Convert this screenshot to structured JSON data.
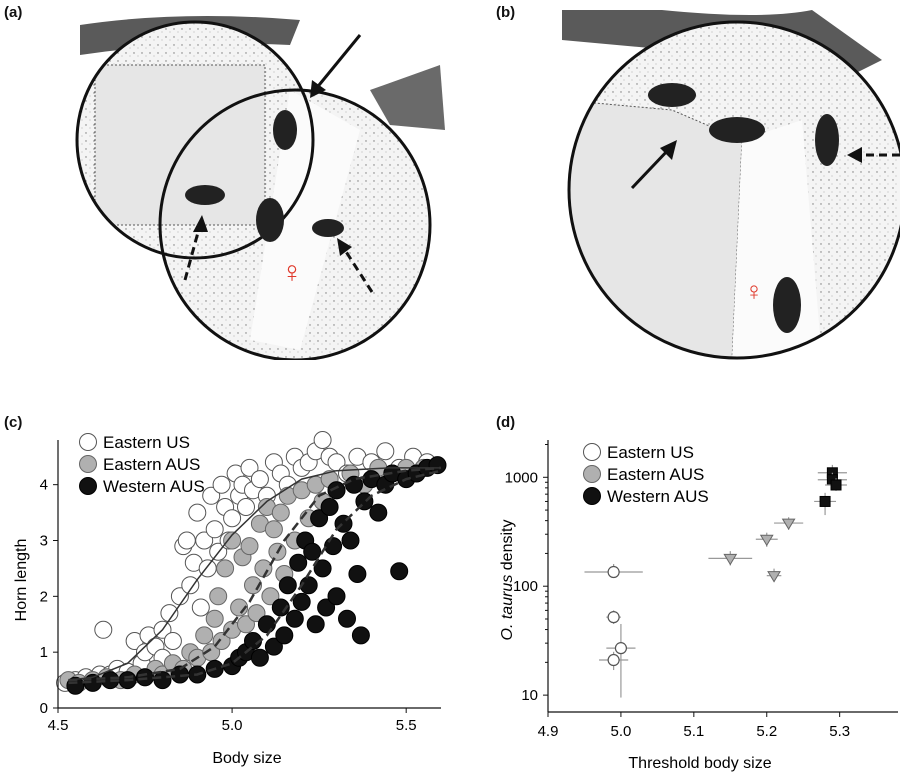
{
  "panels": {
    "a": {
      "label": "(a)"
    },
    "b": {
      "label": "(b)"
    },
    "c": {
      "label": "(c)"
    },
    "d": {
      "label": "(d)"
    }
  },
  "female_symbol": "♀",
  "colors": {
    "eastern_us": "#ffffff",
    "eastern_aus": "#b0b0b0",
    "western_aus": "#111111",
    "stone": "#d9d9d9",
    "beetle": "#222222",
    "female_symbol": "#e0392b"
  },
  "chart_data": [
    {
      "type": "scatter",
      "title": "",
      "xlabel": "Body size",
      "ylabel": "Horn length",
      "xlim": [
        4.5,
        5.6
      ],
      "ylim": [
        0,
        4.8
      ],
      "x_ticks": [
        "4.5",
        "5.0",
        "5.5"
      ],
      "y_ticks": [
        "0",
        "1",
        "2",
        "3",
        "4"
      ],
      "legend": [
        "Eastern US",
        "Eastern AUS",
        "Western AUS"
      ],
      "legend_position": "top-left",
      "series": [
        {
          "name": "Eastern US",
          "points": [
            [
              4.52,
              0.45
            ],
            [
              4.55,
              0.5
            ],
            [
              4.58,
              0.55
            ],
            [
              4.6,
              0.5
            ],
            [
              4.62,
              0.6
            ],
            [
              4.63,
              1.4
            ],
            [
              4.65,
              0.6
            ],
            [
              4.67,
              0.7
            ],
            [
              4.7,
              0.65
            ],
            [
              4.72,
              1.2
            ],
            [
              4.74,
              0.8
            ],
            [
              4.75,
              1.0
            ],
            [
              4.76,
              1.3
            ],
            [
              4.78,
              1.1
            ],
            [
              4.8,
              0.9
            ],
            [
              4.8,
              1.4
            ],
            [
              4.82,
              1.7
            ],
            [
              4.83,
              1.2
            ],
            [
              4.85,
              2.0
            ],
            [
              4.86,
              2.9
            ],
            [
              4.87,
              3.0
            ],
            [
              4.88,
              2.2
            ],
            [
              4.89,
              2.6
            ],
            [
              4.9,
              3.5
            ],
            [
              4.91,
              1.8
            ],
            [
              4.92,
              3.0
            ],
            [
              4.93,
              2.5
            ],
            [
              4.94,
              3.8
            ],
            [
              4.95,
              3.2
            ],
            [
              4.96,
              2.8
            ],
            [
              4.97,
              4.0
            ],
            [
              4.98,
              3.6
            ],
            [
              4.99,
              3.0
            ],
            [
              5.0,
              3.4
            ],
            [
              5.01,
              4.2
            ],
            [
              5.02,
              3.8
            ],
            [
              5.03,
              4.0
            ],
            [
              5.04,
              3.6
            ],
            [
              5.05,
              4.3
            ],
            [
              5.06,
              3.9
            ],
            [
              5.08,
              4.1
            ],
            [
              5.1,
              3.8
            ],
            [
              5.12,
              4.4
            ],
            [
              5.14,
              4.2
            ],
            [
              5.16,
              4.0
            ],
            [
              5.18,
              4.5
            ],
            [
              5.2,
              4.3
            ],
            [
              5.22,
              4.4
            ],
            [
              5.24,
              4.6
            ],
            [
              5.26,
              4.8
            ],
            [
              5.28,
              4.5
            ],
            [
              5.3,
              4.4
            ],
            [
              5.33,
              4.2
            ],
            [
              5.36,
              4.5
            ],
            [
              5.4,
              4.4
            ],
            [
              5.44,
              4.6
            ],
            [
              5.48,
              4.3
            ],
            [
              5.52,
              4.5
            ],
            [
              5.56,
              4.4
            ]
          ]
        },
        {
          "name": "Eastern AUS",
          "points": [
            [
              4.53,
              0.5
            ],
            [
              4.56,
              0.45
            ],
            [
              4.6,
              0.5
            ],
            [
              4.64,
              0.55
            ],
            [
              4.68,
              0.5
            ],
            [
              4.72,
              0.6
            ],
            [
              4.75,
              0.55
            ],
            [
              4.78,
              0.7
            ],
            [
              4.8,
              0.6
            ],
            [
              4.83,
              0.8
            ],
            [
              4.86,
              0.7
            ],
            [
              4.88,
              1.0
            ],
            [
              4.9,
              0.9
            ],
            [
              4.92,
              1.3
            ],
            [
              4.94,
              1.0
            ],
            [
              4.95,
              1.6
            ],
            [
              4.96,
              2.0
            ],
            [
              4.97,
              1.2
            ],
            [
              4.98,
              2.5
            ],
            [
              5.0,
              1.4
            ],
            [
              5.0,
              3.0
            ],
            [
              5.02,
              1.8
            ],
            [
              5.03,
              2.7
            ],
            [
              5.04,
              1.5
            ],
            [
              5.05,
              2.9
            ],
            [
              5.06,
              2.2
            ],
            [
              5.07,
              1.7
            ],
            [
              5.08,
              3.3
            ],
            [
              5.09,
              2.5
            ],
            [
              5.1,
              3.6
            ],
            [
              5.11,
              2.0
            ],
            [
              5.12,
              3.2
            ],
            [
              5.13,
              2.8
            ],
            [
              5.14,
              3.5
            ],
            [
              5.15,
              2.4
            ],
            [
              5.16,
              3.8
            ],
            [
              5.18,
              3.0
            ],
            [
              5.2,
              3.9
            ],
            [
              5.22,
              3.4
            ],
            [
              5.24,
              4.0
            ],
            [
              5.26,
              3.7
            ],
            [
              5.28,
              4.1
            ],
            [
              5.3,
              3.9
            ],
            [
              5.34,
              4.2
            ],
            [
              5.38,
              4.0
            ],
            [
              5.42,
              4.3
            ],
            [
              5.46,
              4.2
            ],
            [
              5.5,
              4.3
            ],
            [
              5.55,
              4.3
            ]
          ]
        },
        {
          "name": "Western AUS",
          "points": [
            [
              4.55,
              0.4
            ],
            [
              4.6,
              0.45
            ],
            [
              4.65,
              0.5
            ],
            [
              4.7,
              0.5
            ],
            [
              4.75,
              0.55
            ],
            [
              4.8,
              0.5
            ],
            [
              4.85,
              0.6
            ],
            [
              4.9,
              0.6
            ],
            [
              4.95,
              0.7
            ],
            [
              5.0,
              0.75
            ],
            [
              5.02,
              0.9
            ],
            [
              5.04,
              1.0
            ],
            [
              5.06,
              1.2
            ],
            [
              5.08,
              0.9
            ],
            [
              5.1,
              1.5
            ],
            [
              5.12,
              1.1
            ],
            [
              5.14,
              1.8
            ],
            [
              5.15,
              1.3
            ],
            [
              5.16,
              2.2
            ],
            [
              5.18,
              1.6
            ],
            [
              5.19,
              2.6
            ],
            [
              5.2,
              1.9
            ],
            [
              5.21,
              3.0
            ],
            [
              5.22,
              2.2
            ],
            [
              5.23,
              2.8
            ],
            [
              5.24,
              1.5
            ],
            [
              5.25,
              3.4
            ],
            [
              5.26,
              2.5
            ],
            [
              5.27,
              1.8
            ],
            [
              5.28,
              3.6
            ],
            [
              5.29,
              2.9
            ],
            [
              5.3,
              2.0
            ],
            [
              5.3,
              3.9
            ],
            [
              5.32,
              3.3
            ],
            [
              5.33,
              1.6
            ],
            [
              5.34,
              3.0
            ],
            [
              5.35,
              4.0
            ],
            [
              5.36,
              2.4
            ],
            [
              5.37,
              1.3
            ],
            [
              5.38,
              3.7
            ],
            [
              5.4,
              4.1
            ],
            [
              5.42,
              3.5
            ],
            [
              5.44,
              4.0
            ],
            [
              5.46,
              4.2
            ],
            [
              5.48,
              2.45
            ],
            [
              5.5,
              4.1
            ],
            [
              5.53,
              4.2
            ],
            [
              5.56,
              4.3
            ],
            [
              5.59,
              4.35
            ]
          ]
        }
      ],
      "fit_curves": [
        {
          "name": "Eastern US",
          "style": "solid",
          "points": [
            [
              4.53,
              0.5
            ],
            [
              4.6,
              0.55
            ],
            [
              4.7,
              0.8
            ],
            [
              4.8,
              1.4
            ],
            [
              4.9,
              2.3
            ],
            [
              5.0,
              3.1
            ],
            [
              5.1,
              3.7
            ],
            [
              5.2,
              4.1
            ],
            [
              5.3,
              4.25
            ],
            [
              5.45,
              4.3
            ],
            [
              5.6,
              4.3
            ]
          ]
        },
        {
          "name": "Eastern AUS",
          "style": "dashed",
          "points": [
            [
              4.53,
              0.5
            ],
            [
              4.7,
              0.55
            ],
            [
              4.85,
              0.7
            ],
            [
              4.95,
              1.1
            ],
            [
              5.05,
              1.9
            ],
            [
              5.15,
              3.0
            ],
            [
              5.25,
              3.8
            ],
            [
              5.35,
              4.1
            ],
            [
              5.5,
              4.25
            ],
            [
              5.6,
              4.3
            ]
          ]
        },
        {
          "name": "Western AUS",
          "style": "dashed",
          "points": [
            [
              4.53,
              0.45
            ],
            [
              4.7,
              0.5
            ],
            [
              4.9,
              0.6
            ],
            [
              5.0,
              0.8
            ],
            [
              5.1,
              1.3
            ],
            [
              5.2,
              2.2
            ],
            [
              5.3,
              3.2
            ],
            [
              5.4,
              3.8
            ],
            [
              5.5,
              4.1
            ],
            [
              5.6,
              4.25
            ]
          ]
        }
      ]
    },
    {
      "type": "scatter",
      "title": "",
      "xlabel": "Threshold body size",
      "ylabel_prefix": "O. taurus",
      "ylabel_suffix": " density",
      "xlim": [
        4.9,
        5.38
      ],
      "ylim": [
        7,
        2200
      ],
      "y_scale": "log",
      "x_ticks": [
        "4.9",
        "5.0",
        "5.1",
        "5.2",
        "5.3"
      ],
      "y_ticks": [
        "10",
        "100",
        "1000"
      ],
      "legend": [
        "Eastern US",
        "Eastern AUS",
        "Western AUS"
      ],
      "legend_position": "top-left",
      "series": [
        {
          "name": "Eastern US",
          "marker": "circle",
          "points": [
            {
              "x": 4.99,
              "y": 135,
              "xerr": 0.04,
              "yerr_lo": 120,
              "yerr_hi": 160
            },
            {
              "x": 4.99,
              "y": 52,
              "xerr": 0.01,
              "yerr_lo": 45,
              "yerr_hi": 60
            },
            {
              "x": 5.0,
              "y": 27,
              "xerr": 0.02,
              "yerr_lo": 9.5,
              "yerr_hi": 45
            },
            {
              "x": 4.99,
              "y": 21,
              "xerr": 0.02,
              "yerr_lo": 17,
              "yerr_hi": 25
            }
          ]
        },
        {
          "name": "Eastern AUS",
          "marker": "triangle-down",
          "points": [
            {
              "x": 5.15,
              "y": 180,
              "xerr": 0.03,
              "yerr_lo": 155,
              "yerr_hi": 210
            },
            {
              "x": 5.2,
              "y": 270,
              "xerr": 0.015,
              "yerr_lo": 230,
              "yerr_hi": 310
            },
            {
              "x": 5.23,
              "y": 380,
              "xerr": 0.02,
              "yerr_lo": 330,
              "yerr_hi": 430
            },
            {
              "x": 5.21,
              "y": 125,
              "xerr": 0.01,
              "yerr_lo": 110,
              "yerr_hi": 145
            }
          ]
        },
        {
          "name": "Western AUS",
          "marker": "square",
          "points": [
            {
              "x": 5.29,
              "y": 1100,
              "xerr": 0.02,
              "yerr_lo": 950,
              "yerr_hi": 1300
            },
            {
              "x": 5.29,
              "y": 950,
              "xerr": 0.02,
              "yerr_lo": 820,
              "yerr_hi": 1100
            },
            {
              "x": 5.295,
              "y": 850,
              "xerr": 0.015,
              "yerr_lo": 750,
              "yerr_hi": 980
            },
            {
              "x": 5.28,
              "y": 600,
              "xerr": 0.015,
              "yerr_lo": 450,
              "yerr_hi": 720
            }
          ]
        }
      ]
    }
  ]
}
